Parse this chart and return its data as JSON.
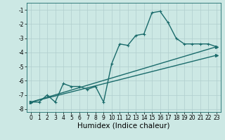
{
  "title": "",
  "xlabel": "Humidex (Indice chaleur)",
  "ylabel": "",
  "background_color": "#cce8e4",
  "grid_color": "#b0cece",
  "line_color": "#1a6b6b",
  "xlim": [
    -0.5,
    23.5
  ],
  "ylim": [
    -8.2,
    -0.5
  ],
  "xticks": [
    0,
    1,
    2,
    3,
    4,
    5,
    6,
    7,
    8,
    9,
    10,
    11,
    12,
    13,
    14,
    15,
    16,
    17,
    18,
    19,
    20,
    21,
    22,
    23
  ],
  "yticks": [
    -8,
    -7,
    -6,
    -5,
    -4,
    -3,
    -2,
    -1
  ],
  "series1_x": [
    0,
    1,
    2,
    3,
    4,
    5,
    6,
    7,
    8,
    9,
    10,
    11,
    12,
    13,
    14,
    15,
    16,
    17,
    18,
    19,
    20,
    21,
    22,
    23
  ],
  "series1_y": [
    -7.5,
    -7.5,
    -7.0,
    -7.5,
    -6.2,
    -6.4,
    -6.4,
    -6.6,
    -6.4,
    -7.5,
    -4.8,
    -3.4,
    -3.5,
    -2.8,
    -2.7,
    -1.2,
    -1.1,
    -1.9,
    -3.0,
    -3.4,
    -3.4,
    -3.4,
    -3.4,
    -3.6
  ],
  "series2_x": [
    0,
    23
  ],
  "series2_y": [
    -7.5,
    -3.6
  ],
  "series3_x": [
    0,
    23
  ],
  "series3_y": [
    -7.5,
    -4.2
  ],
  "marker_size": 3.0,
  "line_width": 1.0,
  "tick_label_fontsize": 5.5,
  "axis_label_fontsize": 7.5
}
